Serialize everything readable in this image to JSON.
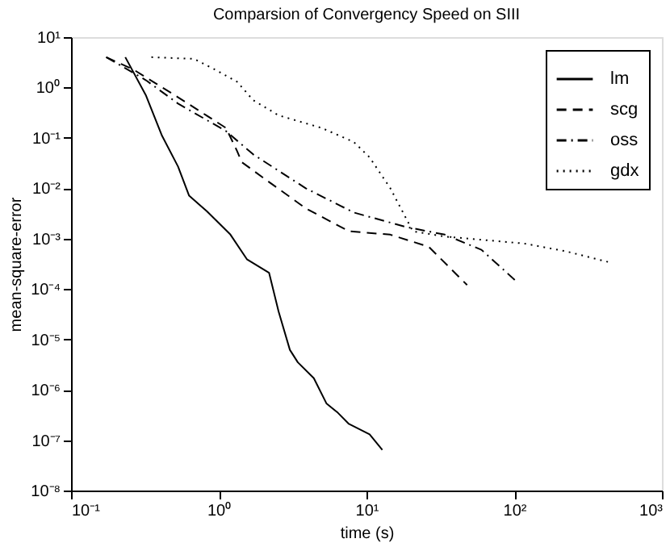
{
  "chart_data": {
    "type": "line",
    "title": "Comparsion of Convergency Speed on SIII",
    "xlabel": "time (s)",
    "ylabel": "mean-square-error",
    "log": "xy",
    "grid": false,
    "legend": "top right",
    "marker": "none",
    "xlim": [
      0.1,
      1000
    ],
    "xticks": [
      {
        "value": 0.1,
        "label": "10⁻¹"
      },
      {
        "value": 1,
        "label": "10⁰"
      },
      {
        "value": 10,
        "label": "10¹"
      },
      {
        "value": 100,
        "label": "10²"
      },
      {
        "value": 1000,
        "label": "10³"
      }
    ],
    "ylim": [
      1e-08,
      10
    ],
    "yticks": [
      {
        "value": 1e-08,
        "label": "10⁻⁸"
      },
      {
        "value": 1e-07,
        "label": "10⁻⁷"
      },
      {
        "value": 1e-06,
        "label": "10⁻⁶"
      },
      {
        "value": 1e-05,
        "label": "10⁻⁵"
      },
      {
        "value": 0.0001,
        "label": "10⁻⁴"
      },
      {
        "value": 0.001,
        "label": "10⁻³"
      },
      {
        "value": 0.01,
        "label": "10⁻²"
      },
      {
        "value": 0.1,
        "label": "10⁻¹"
      },
      {
        "value": 1,
        "label": "10⁰"
      },
      {
        "value": 10,
        "label": "10¹"
      }
    ],
    "series": [
      {
        "name": "lm",
        "color": "#000000",
        "line_style": "solid",
        "x": [
          0.233,
          0.322,
          0.413,
          0.53,
          0.63,
          0.83,
          1.2,
          1.55,
          2.19,
          2.54,
          3.03,
          3.43,
          4.4,
          5.37,
          6.4,
          7.6,
          10.5,
          12.8
        ],
        "values": [
          4,
          0.69,
          0.11,
          0.027,
          0.0071,
          0.0035,
          0.0012,
          0.00039,
          0.00021,
          3.6e-05,
          6.2e-06,
          3.5e-06,
          1.7e-06,
          5.3e-07,
          3.5e-07,
          2.1e-07,
          1.3e-07,
          6.4e-08
        ]
      },
      {
        "name": "scg",
        "color": "#000000",
        "line_style": "dashed",
        "x": [
          0.173,
          0.264,
          0.53,
          1.12,
          1.33,
          1.43,
          2.19,
          3.88,
          7.6,
          14.5,
          26.4,
          48
        ],
        "values": [
          4,
          2.28,
          0.64,
          0.157,
          0.055,
          0.033,
          0.0133,
          0.004,
          0.0014,
          0.0012,
          0.00069,
          0.00012
        ]
      },
      {
        "name": "oss",
        "color": "#000000",
        "line_style": "dashdot",
        "x": [
          0.173,
          0.322,
          0.53,
          1.12,
          1.71,
          3.88,
          8.2,
          18.6,
          33.9,
          60,
          104
        ],
        "values": [
          4,
          1.39,
          0.48,
          0.136,
          0.047,
          0.01,
          0.0033,
          0.0017,
          0.0012,
          0.0006,
          0.00014
        ]
      },
      {
        "name": "gdx",
        "color": "#000000",
        "line_style": "dotted",
        "x": [
          0.35,
          0.68,
          0.94,
          1.33,
          1.71,
          2.54,
          4.98,
          8.2,
          10.5,
          14.5,
          20.6,
          33.9,
          117,
          224,
          440
        ],
        "values": [
          4,
          3.7,
          2.28,
          1.3,
          0.56,
          0.28,
          0.157,
          0.083,
          0.041,
          0.01,
          0.0014,
          0.0011,
          0.0008,
          0.00056,
          0.00034
        ]
      }
    ]
  }
}
